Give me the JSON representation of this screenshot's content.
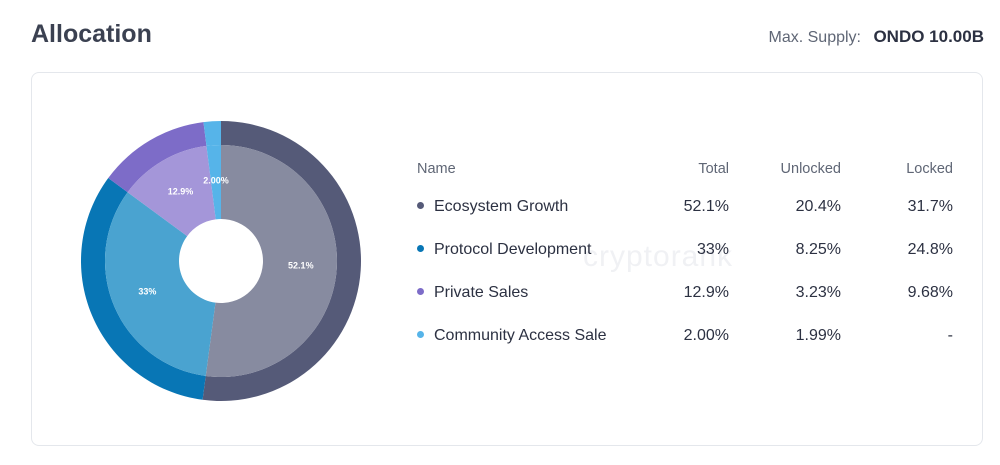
{
  "header": {
    "title": "Allocation",
    "max_supply_label": "Max. Supply:",
    "max_supply_value": "ONDO 10.00B"
  },
  "watermark": "cryptorank",
  "table": {
    "headers": {
      "name": "Name",
      "total": "Total",
      "unlocked": "Unlocked",
      "locked": "Locked"
    },
    "rows": [
      {
        "name": "Ecosystem Growth",
        "total": "52.1%",
        "unlocked": "20.4%",
        "locked": "31.7%",
        "color": "#555a78"
      },
      {
        "name": "Protocol Development",
        "total": "33%",
        "unlocked": "8.25%",
        "locked": "24.8%",
        "color": "#0876b5"
      },
      {
        "name": "Private Sales",
        "total": "12.9%",
        "unlocked": "3.23%",
        "locked": "9.68%",
        "color": "#7d6cc8"
      },
      {
        "name": "Community Access Sale",
        "total": "2.00%",
        "unlocked": "1.99%",
        "locked": "-",
        "color": "#56b4e9"
      }
    ]
  },
  "chart_data": {
    "type": "pie",
    "categories": [
      "Ecosystem Growth",
      "Protocol Development",
      "Private Sales",
      "Community Access Sale"
    ],
    "values": [
      52.1,
      33,
      12.9,
      2.0
    ],
    "slice_labels": [
      "52.1%",
      "33%",
      "12.9%",
      "2.00%"
    ],
    "colors": {
      "outer": [
        "#555a78",
        "#0876b5",
        "#7d6cc8",
        "#56b4e9"
      ],
      "inner": [
        "#878ba0",
        "#4aa3d0",
        "#a496d9",
        "#56b4e9"
      ]
    }
  }
}
